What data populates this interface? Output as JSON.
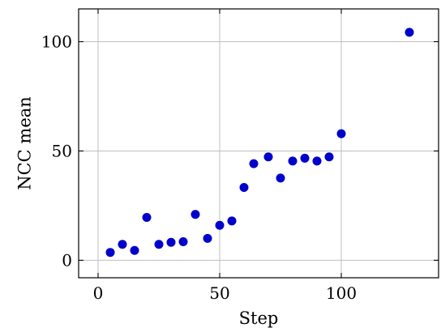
{
  "chart_data": {
    "type": "scatter",
    "title": "",
    "xlabel": "Step",
    "ylabel": "NCC mean",
    "xlim": [
      -8,
      140
    ],
    "ylim": [
      -8,
      115
    ],
    "xticks": [
      0,
      50,
      100
    ],
    "yticks": [
      0,
      50,
      100
    ],
    "x_tick_labels": [
      "0",
      "50",
      "100"
    ],
    "y_tick_labels": [
      "0",
      "50",
      "100"
    ],
    "grid": true,
    "marker_color": "#0000cc",
    "grid_color": "#bfbfbf",
    "series": [
      {
        "x": [
          5,
          10,
          15,
          20,
          25,
          30,
          35,
          40,
          45,
          50,
          55,
          60,
          64,
          70,
          75,
          80,
          85,
          90,
          95,
          100,
          128
        ],
        "y": [
          3.6,
          7.3,
          4.5,
          19.6,
          7.3,
          8.2,
          8.5,
          21.0,
          10.0,
          16.0,
          18.0,
          33.3,
          44.2,
          47.3,
          37.6,
          45.4,
          46.7,
          45.4,
          47.3,
          57.9,
          104.3
        ]
      }
    ]
  }
}
